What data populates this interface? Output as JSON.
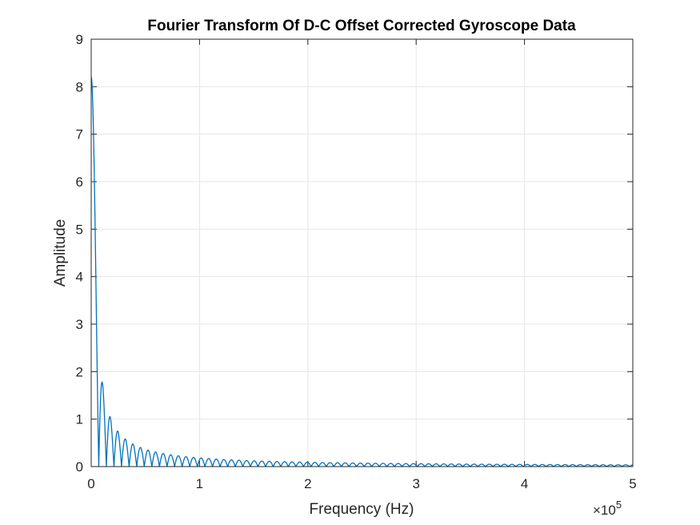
{
  "chart_data": {
    "type": "line",
    "title": "Fourier Transform Of D-C Offset Corrected Gyroscope Data",
    "xlabel": "Frequency (Hz)",
    "ylabel": "Amplitude",
    "x_multiplier": {
      "times": "×10",
      "exponent": "5"
    },
    "xlim": [
      0,
      5
    ],
    "ylim": [
      0,
      9
    ],
    "x_ticks": [
      0,
      1,
      2,
      3,
      4,
      5
    ],
    "x_tick_labels": [
      "0",
      "1",
      "2",
      "3",
      "4",
      "5"
    ],
    "y_ticks": [
      0,
      1,
      2,
      3,
      4,
      5,
      6,
      7,
      8,
      9
    ],
    "y_tick_labels": [
      "0",
      "1",
      "2",
      "3",
      "4",
      "5",
      "6",
      "7",
      "8",
      "9"
    ],
    "grid": true,
    "box": true,
    "series": [
      {
        "color": "#0072BD",
        "shape": "abs-sinc",
        "peak_amplitude": 8.2,
        "first_null_x": 0.07,
        "x_range": [
          0,
          5
        ]
      }
    ]
  }
}
